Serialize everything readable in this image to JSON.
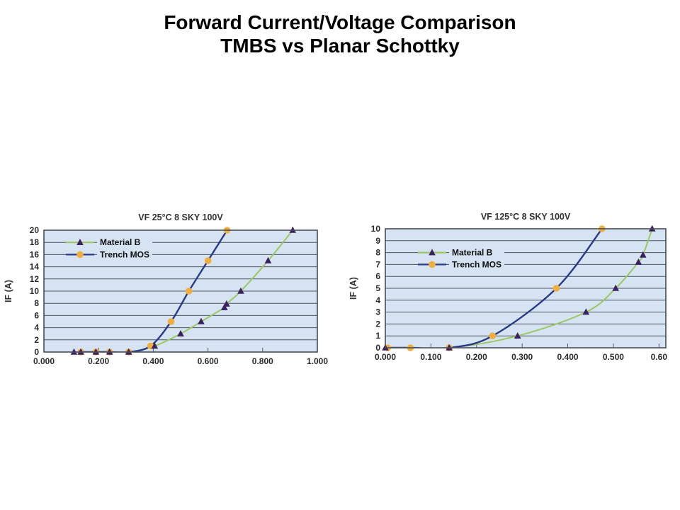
{
  "header": {
    "title_line1": "Forward Current/Voltage Comparison",
    "title_line2": "TMBS vs Planar Schottky"
  },
  "colors": {
    "plot_bg": "#d5e3f2",
    "grid": "#4e5560",
    "border": "#474e58",
    "tick": "#5a5a5a",
    "material_b_line": "#9cc763",
    "material_b_marker": "#3b2161",
    "trench_mos_line": "#2b3a88",
    "trench_mos_marker": "#f2ae3d",
    "text": "#222222"
  },
  "chart_data": [
    {
      "type": "line",
      "title": "VF 25°C 8 SKY 100V",
      "xlabel": "",
      "ylabel": "IF (A)",
      "xlim": [
        0,
        1.0
      ],
      "ylim": [
        0,
        20
      ],
      "grid": "horizontal",
      "x_ticks": [
        "0.000",
        "0.200",
        "0.400",
        "0.600",
        "0.800",
        "1.000"
      ],
      "x_tick_values": [
        0,
        0.2,
        0.4,
        0.6,
        0.8,
        1.0
      ],
      "y_ticks": [
        "0",
        "2",
        "4",
        "6",
        "8",
        "10",
        "12",
        "14",
        "16",
        "18",
        "20"
      ],
      "y_tick_values": [
        0,
        2,
        4,
        6,
        8,
        10,
        12,
        14,
        16,
        18,
        20
      ],
      "legend": {
        "position": "top-left-inside",
        "row_y_values": [
          18,
          16
        ]
      },
      "series": [
        {
          "name": "Material B",
          "marker": "triangle",
          "line_color": "material_b_line",
          "marker_color": "material_b_marker",
          "points": [
            [
              0.11,
              0
            ],
            [
              0.135,
              0
            ],
            [
              0.19,
              0
            ],
            [
              0.24,
              0
            ],
            [
              0.31,
              0
            ],
            [
              0.405,
              1
            ],
            [
              0.5,
              3
            ],
            [
              0.575,
              5
            ],
            [
              0.66,
              7.3
            ],
            [
              0.668,
              7.9
            ],
            [
              0.72,
              10
            ],
            [
              0.82,
              15
            ],
            [
              0.91,
              20
            ]
          ]
        },
        {
          "name": "Trench MOS",
          "marker": "circle",
          "line_color": "trench_mos_line",
          "marker_color": "trench_mos_marker",
          "points": [
            [
              0.135,
              0
            ],
            [
              0.19,
              0
            ],
            [
              0.24,
              0
            ],
            [
              0.31,
              0
            ],
            [
              0.39,
              1
            ],
            [
              0.465,
              5
            ],
            [
              0.53,
              10
            ],
            [
              0.6,
              15
            ],
            [
              0.67,
              20
            ]
          ]
        }
      ]
    },
    {
      "type": "line",
      "title": "VF 125°C 8 SKY 100V",
      "xlabel": "",
      "ylabel": "IF (A)",
      "xlim": [
        0,
        0.615
      ],
      "ylim": [
        0,
        10
      ],
      "grid": "horizontal",
      "x_ticks": [
        "0.000",
        "0.100",
        "0.200",
        "0.300",
        "0.400",
        "0.500",
        "0.60"
      ],
      "x_tick_values": [
        0,
        0.1,
        0.2,
        0.3,
        0.4,
        0.5,
        0.6
      ],
      "y_ticks": [
        "0",
        "1",
        "2",
        "3",
        "4",
        "5",
        "6",
        "7",
        "8",
        "9",
        "10"
      ],
      "y_tick_values": [
        0,
        1,
        2,
        3,
        4,
        5,
        6,
        7,
        8,
        9,
        10
      ],
      "legend": {
        "position": "top-left-inside",
        "row_y_values": [
          8,
          7
        ]
      },
      "series": [
        {
          "name": "Material B",
          "marker": "triangle",
          "line_color": "material_b_line",
          "marker_color": "material_b_marker",
          "points": [
            [
              0.0,
              0
            ],
            [
              0.14,
              0
            ],
            [
              0.29,
              1
            ],
            [
              0.44,
              3
            ],
            [
              0.505,
              5
            ],
            [
              0.555,
              7.2
            ],
            [
              0.565,
              7.8
            ],
            [
              0.585,
              10
            ]
          ]
        },
        {
          "name": "Trench MOS",
          "marker": "circle",
          "line_color": "trench_mos_line",
          "marker_color": "trench_mos_marker",
          "points": [
            [
              0.005,
              0
            ],
            [
              0.055,
              0
            ],
            [
              0.14,
              0
            ],
            [
              0.235,
              1
            ],
            [
              0.375,
              5
            ],
            [
              0.475,
              10
            ]
          ]
        }
      ]
    }
  ]
}
